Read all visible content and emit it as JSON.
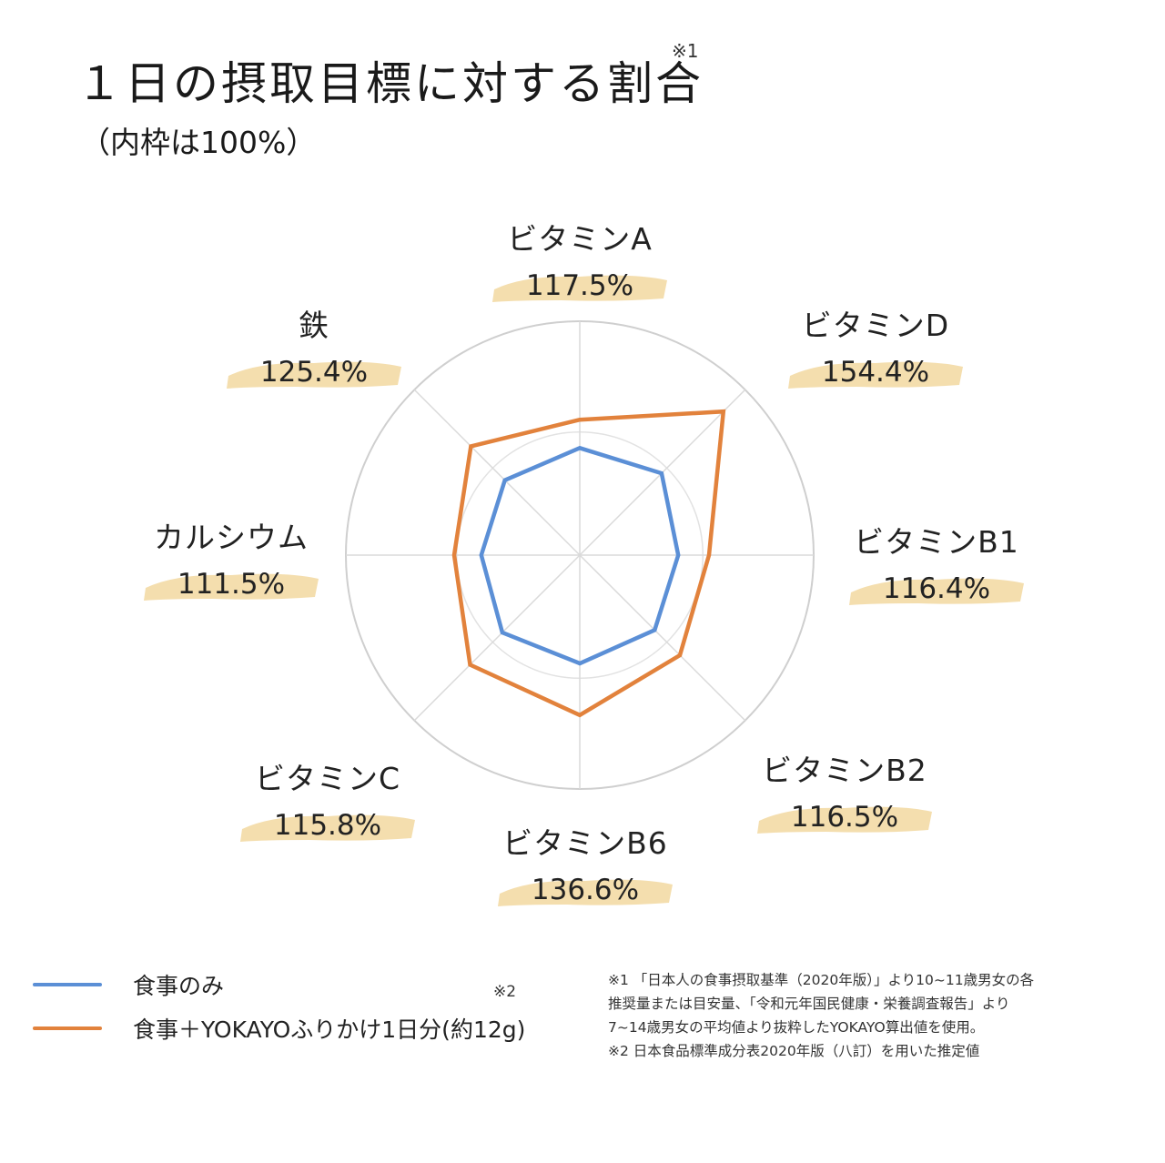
{
  "title": "１日の摂取目標に対する割合",
  "title_note": "※1",
  "subtitle": "（内枠は100%）",
  "colors": {
    "meal_only": "#5b8fd6",
    "meal_plus": "#e2823c",
    "highlight": "#f3dcaa",
    "grid": "#cfcfcf"
  },
  "chart_data": {
    "type": "radar",
    "axes": [
      "ビタミンA",
      "ビタミンD",
      "ビタミンB1",
      "ビタミンB2",
      "ビタミンB6",
      "ビタミンC",
      "カルシウム",
      "鉄"
    ],
    "value_labels": [
      "117.5%",
      "154.4%",
      "116.4%",
      "116.5%",
      "136.6%",
      "115.8%",
      "111.5%",
      "125.4%"
    ],
    "inner_ring_value": 100,
    "series": [
      {
        "name": "食事のみ",
        "values": [
          87,
          94,
          80,
          86,
          88,
          89,
          80,
          86
        ]
      },
      {
        "name": "食事＋YOKAYOふりかけ1日分(約12g)",
        "values": [
          110,
          165,
          105,
          115,
          130,
          126,
          102,
          125
        ]
      }
    ],
    "r_max": 190
  },
  "legend": {
    "items": [
      {
        "label": "食事のみ"
      },
      {
        "label": "食事＋YOKAYOふりかけ1日分(約12g)"
      }
    ],
    "note": "※2"
  },
  "footnotes": [
    "※1 「日本人の食事摂取基準（2020年版）」より10~11歳男女の各",
    "推奨量または目安量、「令和元年国民健康・栄養調査報告」より",
    "7~14歳男女の平均値より抜粋したYOKAYO算出値を使用。",
    "※2  日本食品標準成分表2020年版（八訂）を用いた推定値"
  ]
}
